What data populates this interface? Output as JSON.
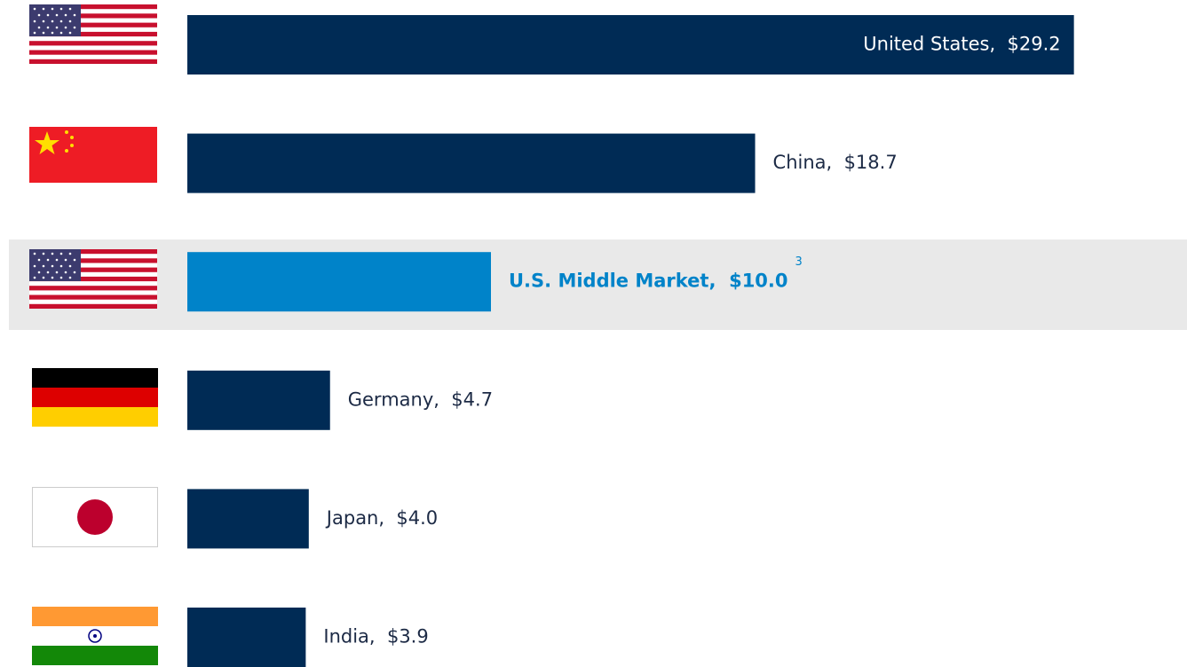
{
  "chart_data": {
    "type": "bar",
    "orientation": "horizontal",
    "categories": [
      "United States",
      "China",
      "U.S. Middle Market",
      "Germany",
      "Japan",
      "India"
    ],
    "values": [
      29.2,
      18.7,
      10.0,
      4.7,
      4.0,
      3.9
    ],
    "value_labels": [
      "$29.2",
      "$18.7",
      "$10.0",
      "$4.7",
      "$4.0",
      "$3.9"
    ],
    "colors": [
      "#002b55",
      "#002b55",
      "#0083c9",
      "#002b55",
      "#002b55",
      "#002b55"
    ],
    "footnote": "3",
    "xlim": [
      0,
      30
    ]
  }
}
